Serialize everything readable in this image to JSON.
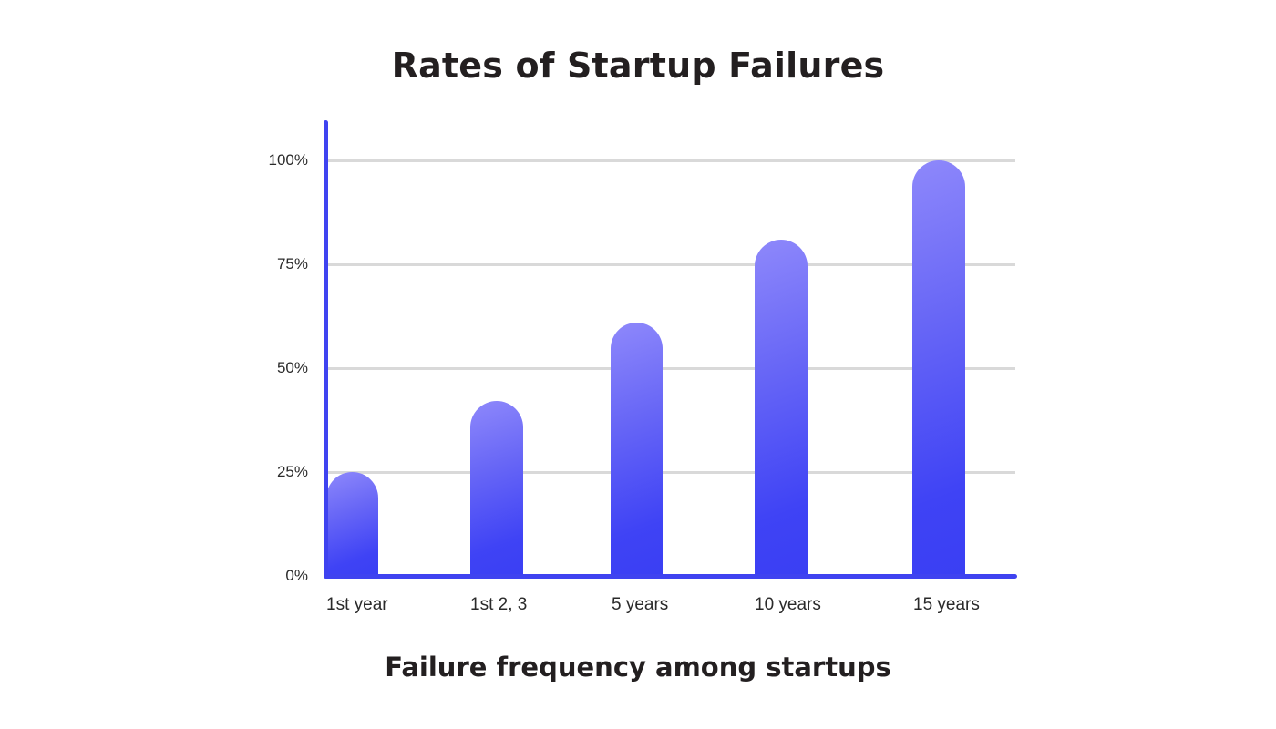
{
  "chart_data": {
    "type": "bar",
    "title": "Rates of Startup Failures",
    "xlabel": "Failure frequency among startups",
    "ylabel": "",
    "categories": [
      "1st year",
      "1st 2, 3",
      "5 years",
      "10 years",
      "15 years"
    ],
    "values": [
      25,
      42,
      61,
      81,
      100
    ],
    "unit": "%",
    "ylim": [
      0,
      100
    ],
    "yticks": [
      "0%",
      "25%",
      "50%",
      "75%",
      "100%"
    ],
    "grid": true,
    "legend": null,
    "colors": {
      "bar_top": "#8e88fb",
      "bar_bottom": "#3a3ff3",
      "axis": "#3f43f0",
      "grid": "#d9d9d9",
      "text": "#231f20"
    }
  }
}
